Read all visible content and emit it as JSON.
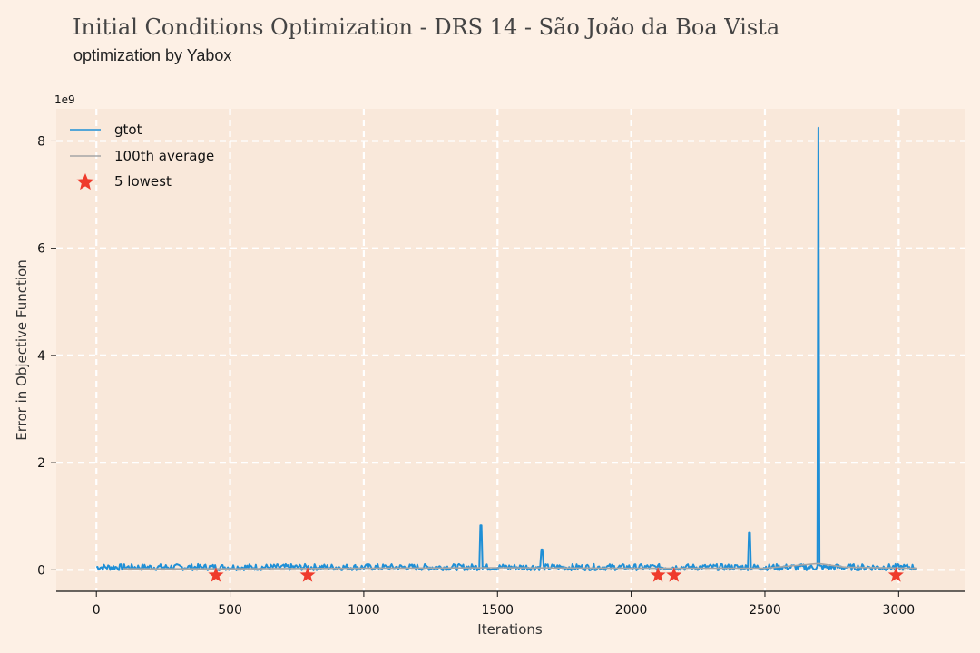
{
  "header": {
    "title": "Initial Conditions Optimization - DRS 14 - São João da Boa Vista",
    "subtitle": "optimization by Yabox"
  },
  "chart_data": {
    "type": "line",
    "xlabel": "Iterations",
    "ylabel": "Error in Objective Function",
    "y_offset_label": "1e9",
    "xlim": [
      -150,
      3250
    ],
    "ylim": [
      -0.4,
      8.6
    ],
    "x_ticks": [
      0,
      500,
      1000,
      1500,
      2000,
      2500,
      3000
    ],
    "x_tick_labels": [
      "0",
      "500",
      "1000",
      "1500",
      "2000",
      "2500",
      "3000"
    ],
    "y_ticks": [
      0,
      2,
      4,
      6,
      8
    ],
    "y_tick_labels": [
      "0",
      "2",
      "4",
      "6",
      "8"
    ],
    "grid": true,
    "legend_position": "top-left",
    "series": [
      {
        "name": "gtot",
        "color": "#1f8fd6",
        "baseline": 0.05,
        "x": [
          0,
          3070
        ],
        "spikes": [
          {
            "x": 1437,
            "y": 0.83
          },
          {
            "x": 1667,
            "y": 0.38
          },
          {
            "x": 2443,
            "y": 0.69
          },
          {
            "x": 2700,
            "y": 8.25
          }
        ]
      },
      {
        "name": "100th average",
        "color": "#a6a6a6",
        "x": [
          100,
          500,
          1000,
          1500,
          2000,
          2500,
          2700,
          2800,
          3070
        ],
        "y": [
          0.02,
          0.02,
          0.03,
          0.04,
          0.03,
          0.03,
          0.12,
          0.05,
          0.03
        ]
      },
      {
        "name": "5 lowest",
        "color": "#ef3b2c",
        "marker": "star",
        "x": [
          447,
          790,
          2100,
          2160,
          2990
        ],
        "y": [
          -0.05,
          -0.05,
          -0.05,
          -0.05,
          -0.05
        ]
      }
    ]
  }
}
